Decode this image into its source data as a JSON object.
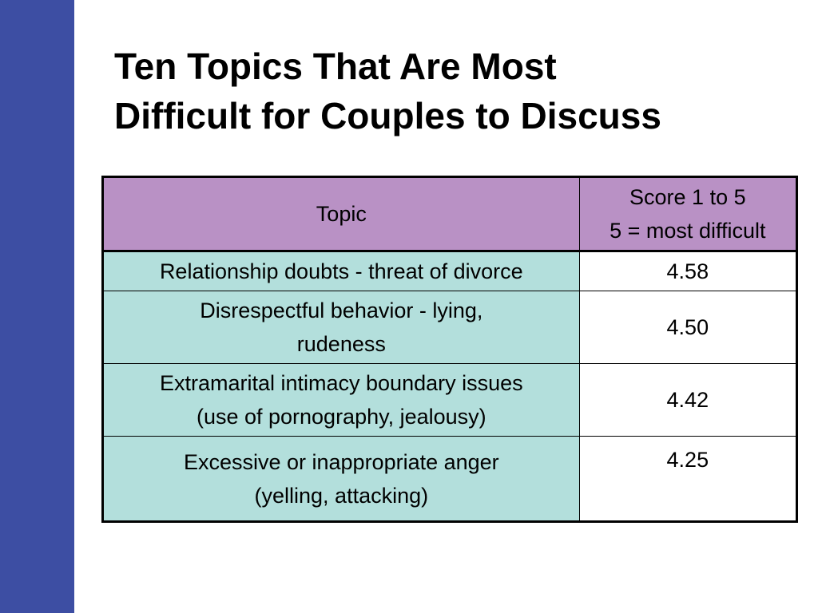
{
  "slide": {
    "title_lines": [
      "Ten Topics That Are Most",
      "Difficult for Couples to Discuss"
    ],
    "accent_color": "#3d4ea3"
  },
  "table": {
    "header": {
      "topic": "Topic",
      "score_lines": [
        "Score 1 to 5",
        "5 = most difficult"
      ]
    },
    "header_color": "#b991c5",
    "topic_cell_color": "#b3dfdc",
    "rows": [
      {
        "topic_lines": [
          "Relationship doubts - threat of divorce"
        ],
        "score": "4.58"
      },
      {
        "topic_lines": [
          "Disrespectful behavior - lying,",
          "rudeness"
        ],
        "score": "4.50"
      },
      {
        "topic_lines": [
          "Extramarital intimacy boundary issues",
          "(use of pornography, jealousy)"
        ],
        "score": "4.42"
      },
      {
        "topic_lines": [
          "Excessive or inappropriate anger",
          "(yelling, attacking)"
        ],
        "score": "4.25"
      }
    ]
  }
}
